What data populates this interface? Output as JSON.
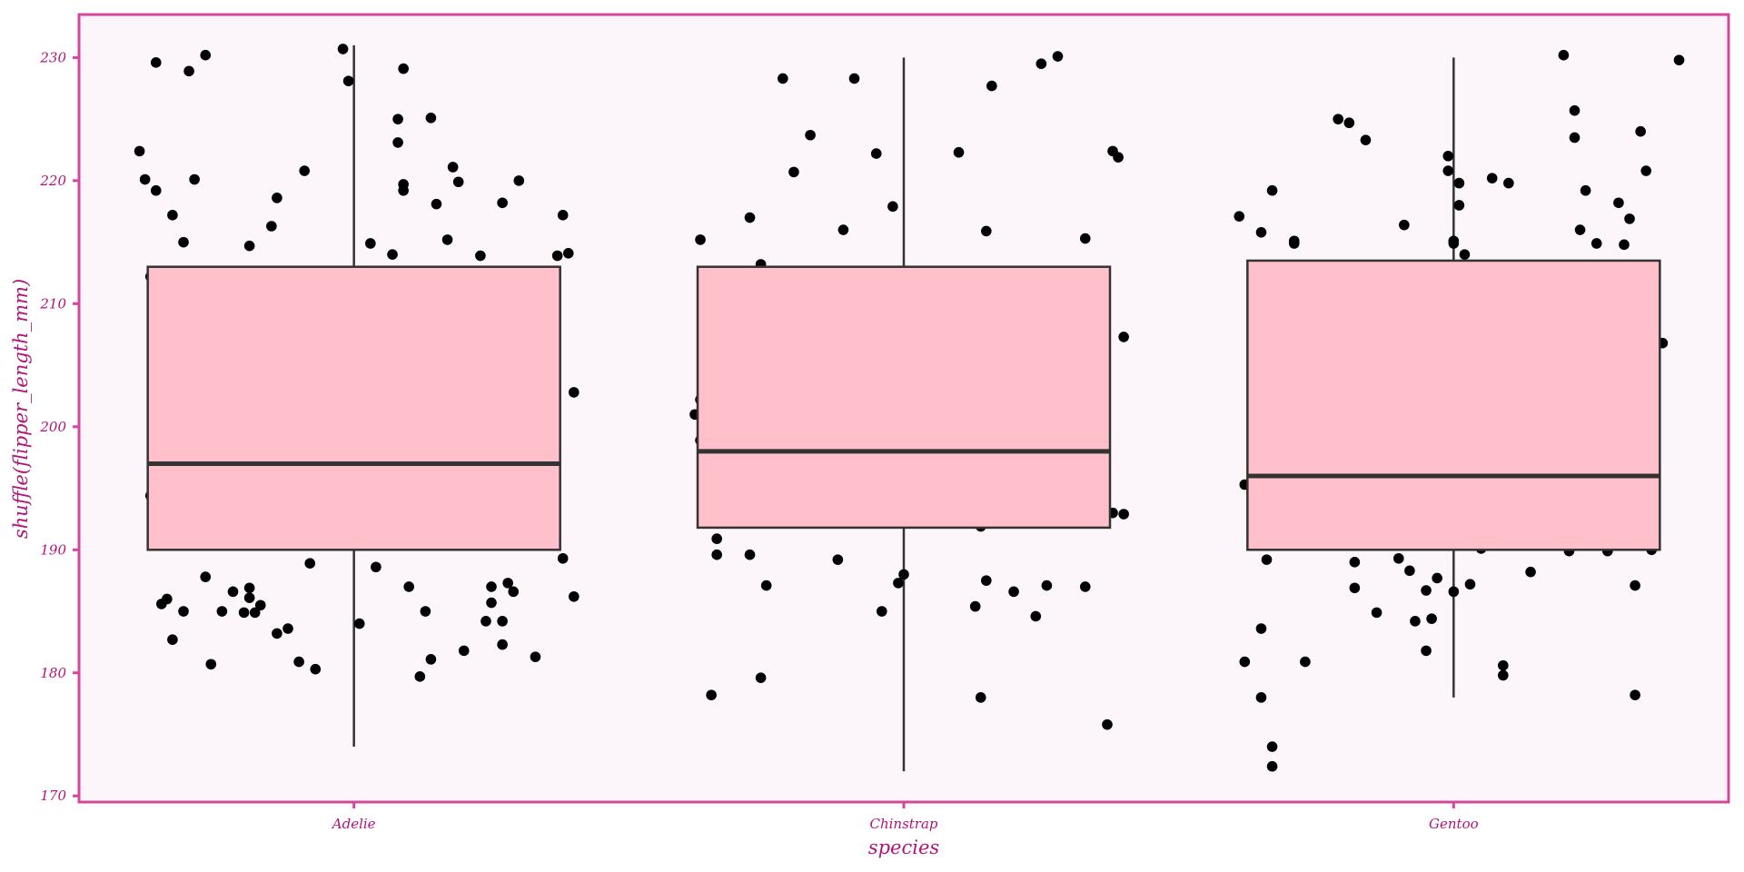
{
  "chart_data": {
    "type": "boxplot",
    "title": "",
    "xlabel": "species",
    "ylabel": "shuffle(flipper_length_mm)",
    "categories": [
      "Adelie",
      "Chinstrap",
      "Gentoo"
    ],
    "ylim": [
      169.5,
      233.5
    ],
    "yticks": [
      170,
      180,
      190,
      200,
      210,
      220,
      230
    ],
    "grid": false,
    "legend": "none",
    "colors": {
      "box_fill": "#ffc0cb",
      "box_stroke": "#333333",
      "point": "#000000",
      "panel_bg": "#fcf5fa",
      "panel_border": "#d4479e",
      "text": "#b0157a"
    },
    "boxes": [
      {
        "category": "Adelie",
        "whisker_low": 174,
        "q1": 190,
        "median": 197,
        "q3": 213,
        "whisker_high": 231
      },
      {
        "category": "Chinstrap",
        "whisker_low": 172,
        "q1": 191.8,
        "median": 198,
        "q3": 213,
        "whisker_high": 230
      },
      {
        "category": "Gentoo",
        "whisker_low": 178,
        "q1": 190,
        "median": 196,
        "q3": 213.5,
        "whisker_high": 230
      }
    ],
    "points": {
      "Adelie": [
        [
          -0.39,
          222.4
        ],
        [
          -0.38,
          220.1
        ],
        [
          -0.37,
          194.4
        ],
        [
          -0.37,
          212.2
        ],
        [
          -0.36,
          229.6
        ],
        [
          -0.36,
          219.2
        ],
        [
          -0.35,
          185.6
        ],
        [
          -0.34,
          186.0
        ],
        [
          -0.33,
          182.7
        ],
        [
          -0.33,
          217.2
        ],
        [
          -0.31,
          185.0
        ],
        [
          -0.31,
          215.0
        ],
        [
          -0.3,
          228.9
        ],
        [
          -0.29,
          220.1
        ],
        [
          -0.27,
          187.8
        ],
        [
          -0.27,
          230.2
        ],
        [
          -0.26,
          180.7
        ],
        [
          -0.24,
          185.0
        ],
        [
          -0.22,
          186.6
        ],
        [
          -0.2,
          184.9
        ],
        [
          -0.19,
          214.7
        ],
        [
          -0.19,
          186.1
        ],
        [
          -0.19,
          186.9
        ],
        [
          -0.18,
          184.9
        ],
        [
          -0.17,
          185.5
        ],
        [
          -0.15,
          216.3
        ],
        [
          -0.14,
          218.6
        ],
        [
          -0.14,
          183.2
        ],
        [
          -0.12,
          183.6
        ],
        [
          -0.1,
          180.9
        ],
        [
          -0.09,
          220.8
        ],
        [
          -0.08,
          188.9
        ],
        [
          -0.07,
          180.3
        ],
        [
          -0.02,
          230.7
        ],
        [
          -0.01,
          228.1
        ],
        [
          0.01,
          184.0
        ],
        [
          0.03,
          214.9
        ],
        [
          0.04,
          188.6
        ],
        [
          0.07,
          214.0
        ],
        [
          0.08,
          225.0
        ],
        [
          0.08,
          223.1
        ],
        [
          0.09,
          229.1
        ],
        [
          0.09,
          219.2
        ],
        [
          0.09,
          219.7
        ],
        [
          0.1,
          187.0
        ],
        [
          0.12,
          179.7
        ],
        [
          0.13,
          185.0
        ],
        [
          0.14,
          225.1
        ],
        [
          0.14,
          181.1
        ],
        [
          0.15,
          218.1
        ],
        [
          0.17,
          215.2
        ],
        [
          0.18,
          221.1
        ],
        [
          0.19,
          219.9
        ],
        [
          0.2,
          181.8
        ],
        [
          0.23,
          213.9
        ],
        [
          0.24,
          184.2
        ],
        [
          0.25,
          187.0
        ],
        [
          0.25,
          185.7
        ],
        [
          0.27,
          218.2
        ],
        [
          0.27,
          182.3
        ],
        [
          0.27,
          184.2
        ],
        [
          0.28,
          187.3
        ],
        [
          0.29,
          186.6
        ],
        [
          0.3,
          220.0
        ],
        [
          0.33,
          181.3
        ],
        [
          0.37,
          213.9
        ],
        [
          0.38,
          217.2
        ],
        [
          0.38,
          189.3
        ],
        [
          0.39,
          214.1
        ],
        [
          0.4,
          202.8
        ],
        [
          0.4,
          186.2
        ]
      ],
      "Chinstrap": [
        [
          -0.38,
          201.0
        ],
        [
          -0.37,
          215.2
        ],
        [
          -0.37,
          202.2
        ],
        [
          -0.37,
          198.9
        ],
        [
          -0.35,
          178.2
        ],
        [
          -0.34,
          189.6
        ],
        [
          -0.34,
          190.9
        ],
        [
          -0.28,
          217.0
        ],
        [
          -0.28,
          189.6
        ],
        [
          -0.26,
          213.2
        ],
        [
          -0.25,
          187.1
        ],
        [
          -0.26,
          179.6
        ],
        [
          -0.22,
          228.3
        ],
        [
          -0.2,
          220.7
        ],
        [
          -0.17,
          223.7
        ],
        [
          -0.12,
          189.2
        ],
        [
          -0.11,
          216.0
        ],
        [
          -0.09,
          228.3
        ],
        [
          -0.05,
          222.2
        ],
        [
          -0.04,
          185.0
        ],
        [
          -0.02,
          217.9
        ],
        [
          -0.01,
          187.3
        ],
        [
          0.0,
          188.0
        ],
        [
          0.1,
          222.3
        ],
        [
          0.13,
          185.4
        ],
        [
          0.14,
          178.0
        ],
        [
          0.14,
          191.9
        ],
        [
          0.15,
          187.5
        ],
        [
          0.15,
          215.9
        ],
        [
          0.16,
          227.7
        ],
        [
          0.2,
          186.6
        ],
        [
          0.24,
          184.6
        ],
        [
          0.25,
          229.5
        ],
        [
          0.26,
          187.1
        ],
        [
          0.28,
          230.1
        ],
        [
          0.33,
          215.3
        ],
        [
          0.33,
          187.0
        ],
        [
          0.37,
          175.8
        ],
        [
          0.38,
          222.4
        ],
        [
          0.38,
          193.0
        ],
        [
          0.39,
          221.9
        ],
        [
          0.4,
          207.3
        ],
        [
          0.4,
          192.9
        ]
      ],
      "Gentoo": [
        [
          -0.39,
          217.1
        ],
        [
          -0.38,
          195.3
        ],
        [
          -0.38,
          180.9
        ],
        [
          -0.35,
          183.6
        ],
        [
          -0.35,
          178.0
        ],
        [
          -0.35,
          215.8
        ],
        [
          -0.34,
          189.2
        ],
        [
          -0.33,
          219.2
        ],
        [
          -0.33,
          174.0
        ],
        [
          -0.33,
          172.4
        ],
        [
          -0.29,
          214.9
        ],
        [
          -0.29,
          215.1
        ],
        [
          -0.27,
          180.9
        ],
        [
          -0.21,
          225.0
        ],
        [
          -0.19,
          224.7
        ],
        [
          -0.18,
          186.9
        ],
        [
          -0.18,
          189.0
        ],
        [
          -0.16,
          223.3
        ],
        [
          -0.14,
          184.9
        ],
        [
          -0.1,
          189.3
        ],
        [
          -0.09,
          216.4
        ],
        [
          -0.08,
          188.3
        ],
        [
          -0.07,
          184.2
        ],
        [
          -0.05,
          186.7
        ],
        [
          -0.05,
          181.8
        ],
        [
          -0.04,
          184.4
        ],
        [
          -0.03,
          187.7
        ],
        [
          -0.01,
          222.0
        ],
        [
          -0.01,
          220.8
        ],
        [
          0.0,
          215.1
        ],
        [
          0.0,
          186.6
        ],
        [
          0.0,
          214.9
        ],
        [
          0.01,
          218.0
        ],
        [
          0.01,
          219.8
        ],
        [
          0.02,
          214.0
        ],
        [
          0.03,
          187.2
        ],
        [
          0.05,
          190.1
        ],
        [
          0.07,
          220.2
        ],
        [
          0.09,
          179.8
        ],
        [
          0.09,
          180.6
        ],
        [
          0.1,
          219.8
        ],
        [
          0.14,
          188.2
        ],
        [
          0.2,
          230.2
        ],
        [
          0.21,
          189.9
        ],
        [
          0.22,
          223.5
        ],
        [
          0.22,
          225.7
        ],
        [
          0.23,
          216.0
        ],
        [
          0.24,
          219.2
        ],
        [
          0.26,
          214.9
        ],
        [
          0.28,
          189.9
        ],
        [
          0.3,
          218.2
        ],
        [
          0.31,
          214.8
        ],
        [
          0.32,
          216.9
        ],
        [
          0.33,
          187.1
        ],
        [
          0.33,
          178.2
        ],
        [
          0.34,
          224.0
        ],
        [
          0.35,
          220.8
        ],
        [
          0.36,
          190.0
        ],
        [
          0.38,
          206.8
        ],
        [
          0.41,
          229.8
        ]
      ]
    }
  }
}
